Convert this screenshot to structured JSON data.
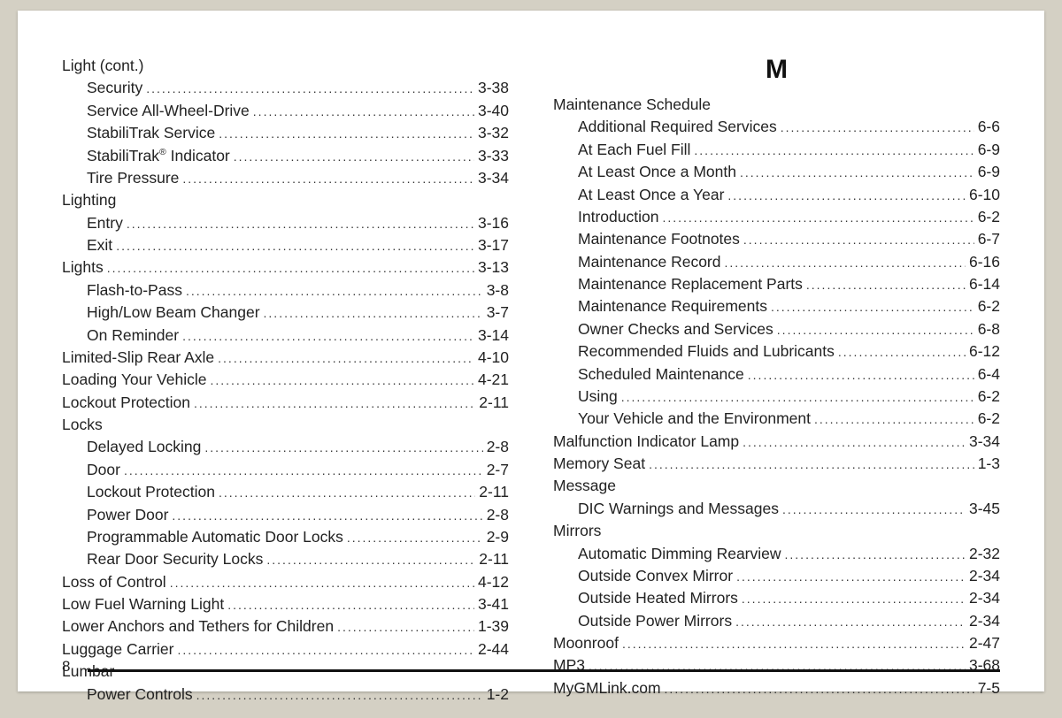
{
  "page_number": "8",
  "columns": [
    {
      "section_letter": null,
      "entries": [
        {
          "label": "Light (cont.)",
          "page": null,
          "indent": 0
        },
        {
          "label": "Security",
          "page": "3-38",
          "indent": 1
        },
        {
          "label": "Service All-Wheel-Drive",
          "page": "3-40",
          "indent": 1
        },
        {
          "label": "StabiliTrak Service",
          "page": "3-32",
          "indent": 1
        },
        {
          "label": "StabiliTrak® Indicator",
          "page": "3-33",
          "indent": 1,
          "registered_after": "StabiliTrak"
        },
        {
          "label": "Tire Pressure",
          "page": "3-34",
          "indent": 1
        },
        {
          "label": "Lighting",
          "page": null,
          "indent": 0
        },
        {
          "label": "Entry",
          "page": "3-16",
          "indent": 1
        },
        {
          "label": "Exit",
          "page": "3-17",
          "indent": 1
        },
        {
          "label": "Lights",
          "page": "3-13",
          "indent": 0
        },
        {
          "label": "Flash-to-Pass",
          "page": "3-8",
          "indent": 1
        },
        {
          "label": "High/Low Beam Changer",
          "page": "3-7",
          "indent": 1
        },
        {
          "label": "On Reminder",
          "page": "3-14",
          "indent": 1
        },
        {
          "label": "Limited-Slip Rear Axle",
          "page": "4-10",
          "indent": 0
        },
        {
          "label": "Loading Your Vehicle",
          "page": "4-21",
          "indent": 0
        },
        {
          "label": "Lockout Protection",
          "page": "2-11",
          "indent": 0
        },
        {
          "label": "Locks",
          "page": null,
          "indent": 0
        },
        {
          "label": "Delayed Locking",
          "page": "2-8",
          "indent": 1
        },
        {
          "label": "Door",
          "page": "2-7",
          "indent": 1
        },
        {
          "label": "Lockout Protection",
          "page": "2-11",
          "indent": 1
        },
        {
          "label": "Power Door",
          "page": "2-8",
          "indent": 1
        },
        {
          "label": "Programmable Automatic Door Locks",
          "page": "2-9",
          "indent": 1
        },
        {
          "label": "Rear Door Security Locks",
          "page": "2-11",
          "indent": 1
        },
        {
          "label": "Loss of Control",
          "page": "4-12",
          "indent": 0
        },
        {
          "label": "Low Fuel Warning Light",
          "page": "3-41",
          "indent": 0
        },
        {
          "label": "Lower Anchors and Tethers for Children",
          "page": "1-39",
          "indent": 0
        },
        {
          "label": "Luggage Carrier",
          "page": "2-44",
          "indent": 0
        },
        {
          "label": "Lumbar",
          "page": null,
          "indent": 0
        },
        {
          "label": "Power Controls",
          "page": "1-2",
          "indent": 1
        }
      ]
    },
    {
      "section_letter": "M",
      "entries": [
        {
          "label": "Maintenance Schedule",
          "page": null,
          "indent": 0
        },
        {
          "label": "Additional Required Services",
          "page": "6-6",
          "indent": 1
        },
        {
          "label": "At Each Fuel Fill",
          "page": "6-9",
          "indent": 1
        },
        {
          "label": "At Least Once a Month",
          "page": "6-9",
          "indent": 1
        },
        {
          "label": "At Least Once a Year",
          "page": "6-10",
          "indent": 1
        },
        {
          "label": "Introduction",
          "page": "6-2",
          "indent": 1
        },
        {
          "label": "Maintenance Footnotes",
          "page": "6-7",
          "indent": 1
        },
        {
          "label": "Maintenance Record",
          "page": "6-16",
          "indent": 1
        },
        {
          "label": "Maintenance Replacement Parts",
          "page": "6-14",
          "indent": 1
        },
        {
          "label": "Maintenance Requirements",
          "page": "6-2",
          "indent": 1
        },
        {
          "label": "Owner Checks and Services",
          "page": "6-8",
          "indent": 1
        },
        {
          "label": "Recommended Fluids and Lubricants",
          "page": "6-12",
          "indent": 1
        },
        {
          "label": "Scheduled Maintenance",
          "page": "6-4",
          "indent": 1
        },
        {
          "label": "Using",
          "page": "6-2",
          "indent": 1
        },
        {
          "label": "Your Vehicle and the Environment",
          "page": "6-2",
          "indent": 1
        },
        {
          "label": "Malfunction Indicator Lamp",
          "page": "3-34",
          "indent": 0
        },
        {
          "label": "Memory Seat",
          "page": "1-3",
          "indent": 0
        },
        {
          "label": "Message",
          "page": null,
          "indent": 0
        },
        {
          "label": "DIC Warnings and Messages",
          "page": "3-45",
          "indent": 1
        },
        {
          "label": "Mirrors",
          "page": null,
          "indent": 0
        },
        {
          "label": "Automatic Dimming Rearview",
          "page": "2-32",
          "indent": 1
        },
        {
          "label": "Outside Convex Mirror",
          "page": "2-34",
          "indent": 1
        },
        {
          "label": "Outside Heated Mirrors",
          "page": "2-34",
          "indent": 1
        },
        {
          "label": "Outside Power Mirrors",
          "page": "2-34",
          "indent": 1
        },
        {
          "label": "Moonroof",
          "page": "2-47",
          "indent": 0
        },
        {
          "label": "MP3",
          "page": "3-68",
          "indent": 0
        },
        {
          "label": "MyGMLink.com",
          "page": "7-5",
          "indent": 0
        }
      ]
    }
  ]
}
